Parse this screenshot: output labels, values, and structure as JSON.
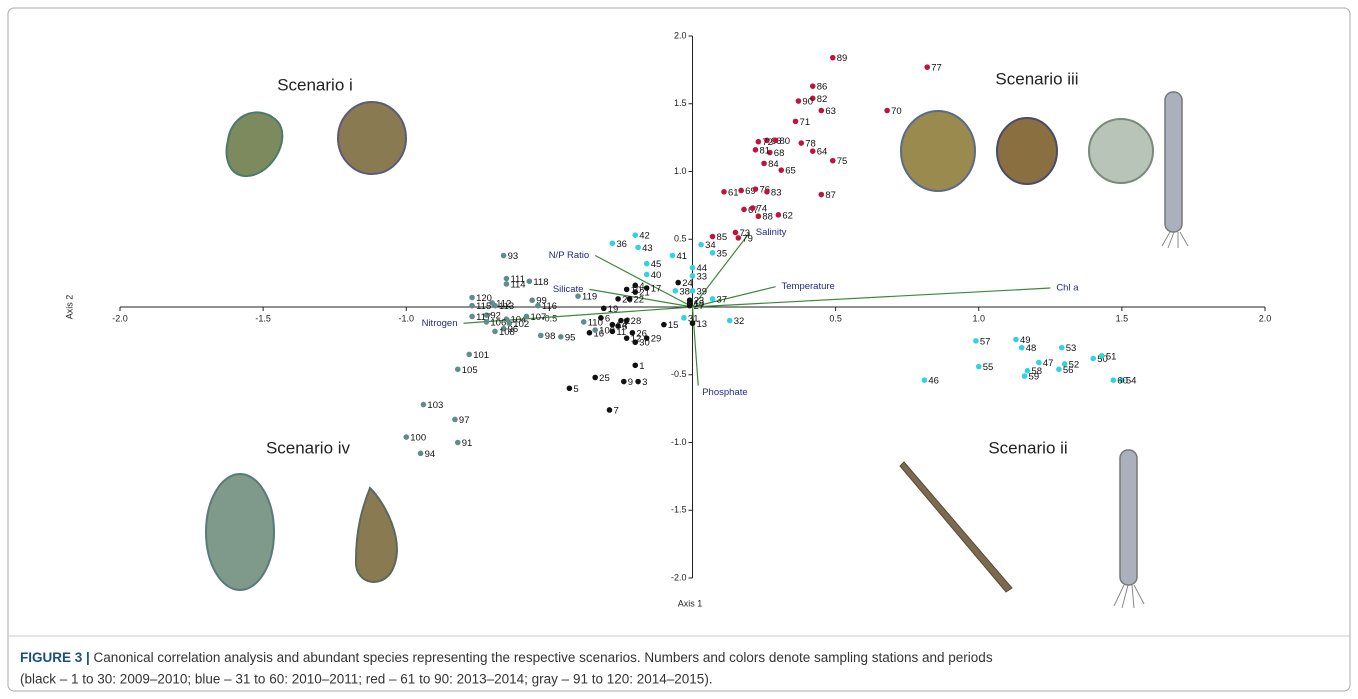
{
  "chart_data": {
    "type": "scatter",
    "xlabel": "Axis 1",
    "ylabel": "Axis 2",
    "xlim": [
      -2,
      2
    ],
    "ylim": [
      -2,
      2
    ],
    "xticks": [
      {
        "value": -2,
        "label": "-2.0"
      },
      -1.5,
      {
        "value": -1,
        "label": "-1.0"
      },
      -0.5,
      0.5,
      {
        "value": 1,
        "label": "1.0"
      },
      1.5,
      {
        "value": 2,
        "label": "2.0"
      }
    ],
    "yticks": [
      {
        "value": 2,
        "label": "2.0"
      },
      1.5,
      {
        "value": 1,
        "label": "1.0"
      },
      0.5,
      -0.5,
      {
        "value": -1,
        "label": "-1.0"
      },
      -1.5,
      {
        "value": -2,
        "label": "-2.0"
      }
    ],
    "series": [
      {
        "color": "#111111",
        "labels": [
          1,
          2,
          3,
          4,
          5,
          6,
          7,
          8,
          9,
          10,
          11,
          12,
          13,
          14,
          15,
          16,
          17,
          18,
          19,
          20,
          21,
          22,
          23,
          24,
          25,
          26,
          27,
          28,
          29,
          30
        ],
        "x": [
          -0.2,
          -0.25,
          -0.19,
          -0.2,
          -0.43,
          -0.32,
          -0.29,
          -0.26,
          -0.24,
          -0.23,
          -0.28,
          -0.23,
          0.0,
          -0.28,
          -0.1,
          -0.36,
          -0.16,
          -0.01,
          -0.31,
          -0.26,
          -0.2,
          -0.22,
          -0.01,
          -0.05,
          -0.34,
          -0.21,
          -0.01,
          -0.23,
          -0.16,
          -0.2
        ],
        "values": [
          -0.43,
          -0.1,
          -0.55,
          0.16,
          -0.6,
          -0.08,
          -0.76,
          -0.14,
          -0.55,
          0.13,
          -0.18,
          -0.23,
          -0.12,
          -0.13,
          -0.13,
          -0.19,
          0.14,
          0.03,
          -0.01,
          0.06,
          0.11,
          0.06,
          0.05,
          0.18,
          -0.52,
          -0.19,
          0.01,
          -0.1,
          -0.23,
          -0.26
        ]
      },
      {
        "color": "#2fd3e3",
        "labels": [
          31,
          32,
          33,
          34,
          35,
          36,
          37,
          38,
          39,
          40,
          41,
          42,
          43,
          44,
          45,
          46,
          47,
          48,
          49,
          50,
          51,
          52,
          53,
          54,
          55,
          56,
          57,
          58,
          59,
          60
        ],
        "x": [
          -0.03,
          0.13,
          0.0,
          0.03,
          0.07,
          -0.28,
          0.07,
          -0.06,
          0.0,
          -0.16,
          -0.07,
          -0.2,
          -0.19,
          0.0,
          -0.16,
          0.81,
          1.21,
          1.15,
          1.13,
          1.4,
          1.43,
          1.3,
          1.29,
          1.5,
          1.0,
          1.28,
          0.99,
          1.17,
          1.16,
          1.47
        ],
        "values": [
          -0.08,
          -0.1,
          0.23,
          0.46,
          0.4,
          0.47,
          0.06,
          0.12,
          0.12,
          0.24,
          0.38,
          0.53,
          0.44,
          0.29,
          0.32,
          -0.54,
          -0.41,
          -0.3,
          -0.24,
          -0.38,
          -0.36,
          -0.42,
          -0.3,
          -0.54,
          -0.44,
          -0.46,
          -0.25,
          -0.47,
          -0.51,
          -0.54
        ]
      },
      {
        "color": "#c0143c",
        "labels": [
          61,
          62,
          63,
          64,
          65,
          66,
          67,
          68,
          69,
          70,
          71,
          72,
          73,
          74,
          75,
          76,
          77,
          78,
          79,
          80,
          81,
          82,
          83,
          84,
          85,
          86,
          87,
          88,
          89,
          90
        ],
        "x": [
          0.11,
          0.3,
          0.45,
          0.42,
          0.31,
          0.26,
          0.18,
          0.27,
          0.17,
          0.68,
          0.36,
          0.23,
          0.15,
          0.21,
          0.49,
          0.22,
          0.82,
          0.38,
          0.16,
          0.29,
          0.22,
          0.42,
          0.26,
          0.25,
          0.07,
          0.42,
          0.45,
          0.23,
          0.49,
          0.37
        ],
        "values": [
          0.85,
          0.68,
          1.45,
          1.15,
          1.01,
          1.23,
          0.72,
          1.14,
          0.86,
          1.45,
          1.37,
          1.22,
          0.55,
          0.73,
          1.08,
          0.87,
          1.77,
          1.21,
          0.51,
          1.23,
          1.16,
          1.54,
          0.85,
          1.06,
          0.52,
          1.63,
          0.83,
          0.67,
          1.84,
          1.52
        ]
      },
      {
        "color": "#5f8c8c",
        "labels": [
          91,
          92,
          93,
          94,
          95,
          96,
          97,
          98,
          99,
          100,
          101,
          102,
          103,
          104,
          105,
          106,
          107,
          108,
          109,
          110,
          111,
          112,
          113,
          114,
          115,
          116,
          117,
          118,
          119,
          120
        ],
        "x": [
          -0.82,
          -0.72,
          -0.66,
          -0.95,
          -0.46,
          -0.66,
          -0.83,
          -0.53,
          -0.56,
          -1.0,
          -0.78,
          -0.64,
          -0.94,
          -0.65,
          -0.82,
          -0.72,
          -0.58,
          -0.69,
          -0.34,
          -0.38,
          -0.65,
          -0.7,
          -0.69,
          -0.65,
          -0.77,
          -0.54,
          -0.77,
          -0.57,
          -0.4,
          -0.77
        ],
        "values": [
          -1.0,
          -0.06,
          0.38,
          -1.08,
          -0.22,
          -0.16,
          -0.83,
          -0.21,
          0.05,
          -0.96,
          -0.35,
          -0.12,
          -0.72,
          -0.09,
          -0.46,
          -0.11,
          -0.07,
          -0.18,
          -0.17,
          -0.11,
          0.21,
          0.03,
          0.01,
          0.17,
          0.01,
          0.01,
          -0.07,
          0.19,
          0.08,
          0.07
        ]
      }
    ],
    "vectors": [
      {
        "name": "Salinity",
        "x": 0.2,
        "y": 0.55
      },
      {
        "name": "Temperature",
        "x": 0.29,
        "y": 0.15
      },
      {
        "name": "Chl a",
        "x": 1.25,
        "y": 0.14
      },
      {
        "name": "Phosphate",
        "x": 0.02,
        "y": -0.58
      },
      {
        "name": "Nitrogen",
        "x": -0.8,
        "y": -0.12
      },
      {
        "name": "Silicate",
        "x": -0.36,
        "y": 0.13
      },
      {
        "name": "N/P Ratio",
        "x": -0.34,
        "y": 0.38
      }
    ],
    "vector_color": "#3a8a3a",
    "annotations": [
      "Scenario i",
      "Scenario iii",
      "Scenario iv",
      "Scenario ii"
    ]
  },
  "caption": {
    "label": "FIGURE 3 |",
    "text": " Canonical correlation analysis and abundant species representing the respective scenarios. Numbers and colors denote sampling stations and periods",
    "text2": "(black – 1 to 30: 2009–2010; blue – 31 to 60: 2010–2011; red – 61 to 90: 2013–2014; gray – 91 to 120: 2014–2015)."
  }
}
